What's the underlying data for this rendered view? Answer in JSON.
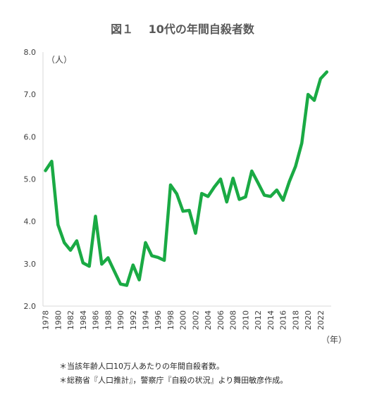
{
  "chart_data": {
    "type": "line",
    "title": "図１　 10代の年間自殺者数",
    "ylabel": "（人）",
    "xlabel": "（年）",
    "ylim": [
      2.0,
      8.0
    ],
    "yticks": [
      "2.0",
      "3.0",
      "4.0",
      "5.0",
      "6.0",
      "7.0",
      "8.0"
    ],
    "xticks": [
      "1978",
      "1980",
      "1982",
      "1984",
      "1986",
      "1988",
      "1990",
      "1992",
      "1994",
      "1996",
      "1998",
      "2000",
      "2002",
      "2004",
      "2006",
      "2008",
      "2010",
      "2012",
      "2014",
      "2016",
      "2018",
      "2020",
      "2022"
    ],
    "grid": false,
    "line_color": "#1aaa44",
    "x": [
      1978,
      1979,
      1980,
      1981,
      1982,
      1983,
      1984,
      1985,
      1986,
      1987,
      1988,
      1989,
      1990,
      1991,
      1992,
      1993,
      1994,
      1995,
      1996,
      1997,
      1998,
      1999,
      2000,
      2001,
      2002,
      2003,
      2004,
      2005,
      2006,
      2007,
      2008,
      2009,
      2010,
      2011,
      2012,
      2013,
      2014,
      2015,
      2016,
      2017,
      2018,
      2019,
      2020,
      2021,
      2022,
      2023
    ],
    "series": [
      {
        "values": [
          5.2,
          5.42,
          3.92,
          3.5,
          3.32,
          3.54,
          3.02,
          2.94,
          4.12,
          2.99,
          3.14,
          2.83,
          2.52,
          2.49,
          2.97,
          2.62,
          3.5,
          3.19,
          3.15,
          3.08,
          4.86,
          4.65,
          4.24,
          4.26,
          3.72,
          4.66,
          4.59,
          4.81,
          5.0,
          4.46,
          5.02,
          4.52,
          4.58,
          5.19,
          4.91,
          4.62,
          4.59,
          4.74,
          4.5,
          4.94,
          5.3,
          5.85,
          7.0,
          6.86,
          7.37,
          7.53
        ]
      }
    ]
  },
  "notes": [
    "＊当該年齢人口10万人あたりの年間自殺者数。",
    "＊総務省『人口推計』，警察庁『自殺の状況』より舞田敏彦作成。"
  ]
}
